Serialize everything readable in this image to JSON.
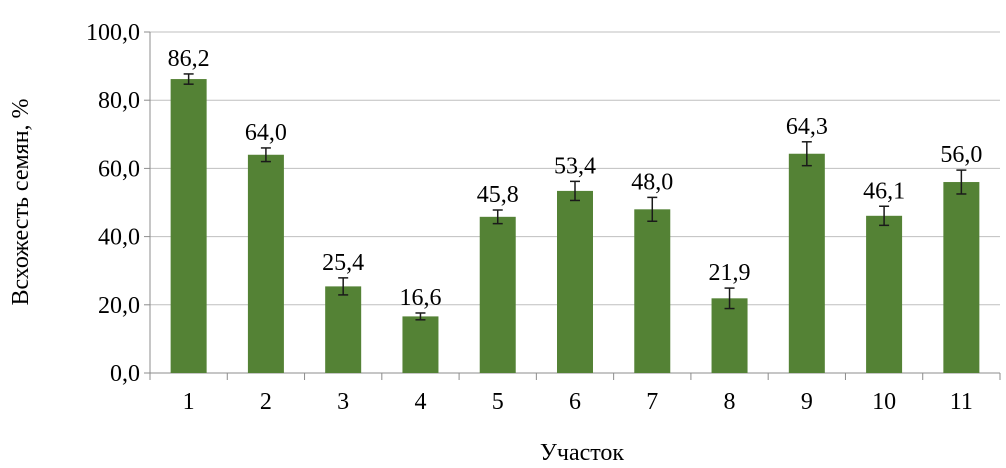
{
  "chart_data": {
    "type": "bar",
    "title": "",
    "xlabel": "Участок",
    "ylabel": "Всхожесть семян, %",
    "categories": [
      "1",
      "2",
      "3",
      "4",
      "5",
      "6",
      "7",
      "8",
      "9",
      "10",
      "11"
    ],
    "values": [
      86.2,
      64.0,
      25.4,
      16.6,
      45.8,
      53.4,
      48.0,
      21.9,
      64.3,
      46.1,
      56.0
    ],
    "data_labels": [
      "86,2",
      "64,0",
      "25,4",
      "16,6",
      "45,8",
      "53,4",
      "48,0",
      "21,9",
      "64,3",
      "46,1",
      "56,0"
    ],
    "errors": [
      1.5,
      2.0,
      2.5,
      1.0,
      2.0,
      2.8,
      3.5,
      3.0,
      3.5,
      2.8,
      3.5
    ],
    "ylim": [
      0,
      100
    ],
    "yticks": [
      0,
      20,
      40,
      60,
      80,
      100
    ],
    "ytick_labels": [
      "0,0",
      "20,0",
      "40,0",
      "60,0",
      "80,0",
      "100,0"
    ],
    "grid": true,
    "legend": false,
    "bar_color": "#548235"
  }
}
